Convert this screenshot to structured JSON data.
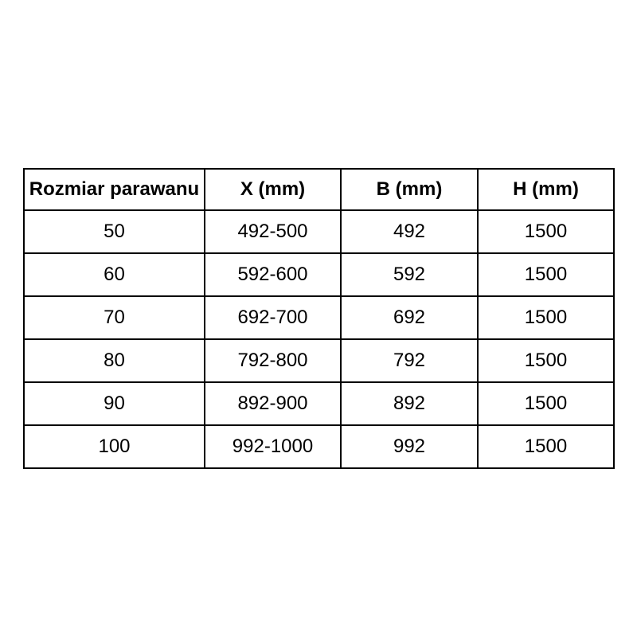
{
  "table": {
    "title_semantic": "screen-size-dimensions-table",
    "columns": [
      "Rozmiar parawanu",
      "X (mm)",
      "B (mm)",
      "H (mm)"
    ],
    "rows": [
      [
        "50",
        "492-500",
        "492",
        "1500"
      ],
      [
        "60",
        "592-600",
        "592",
        "1500"
      ],
      [
        "70",
        "692-700",
        "692",
        "1500"
      ],
      [
        "80",
        "792-800",
        "792",
        "1500"
      ],
      [
        "90",
        "892-900",
        "892",
        "1500"
      ],
      [
        "100",
        "992-1000",
        "992",
        "1500"
      ]
    ]
  },
  "colors": {
    "background": "#ffffff",
    "border": "#000000",
    "text": "#000000"
  }
}
